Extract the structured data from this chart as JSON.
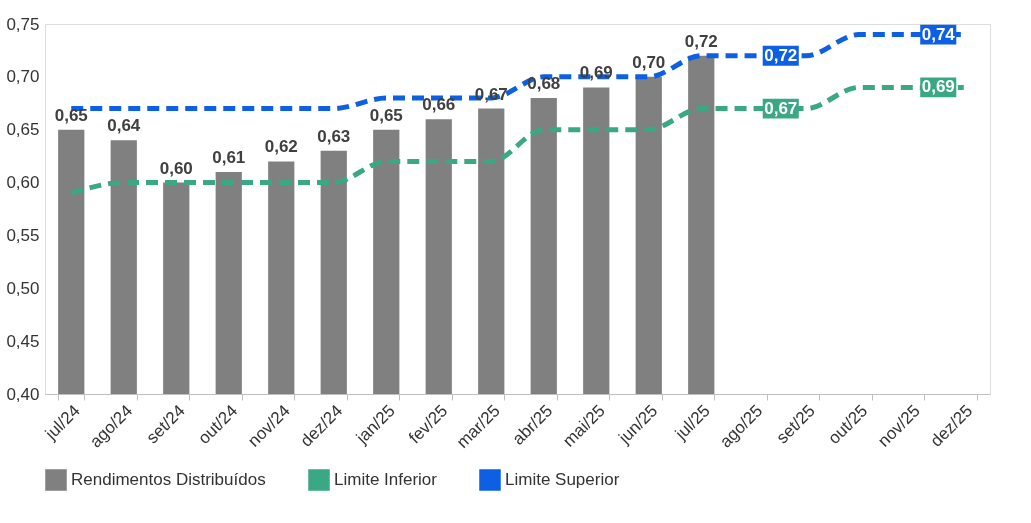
{
  "chart_data": {
    "type": "bar",
    "categories": [
      "jul/24",
      "ago/24",
      "set/24",
      "out/24",
      "nov/24",
      "dez/24",
      "jan/25",
      "fev/25",
      "mar/25",
      "abr/25",
      "mai/25",
      "jun/25",
      "jul/25",
      "ago/25",
      "set/25",
      "out/25",
      "nov/25",
      "dez/25"
    ],
    "series": [
      {
        "name": "Rendimentos Distribuídos",
        "color": "#808080",
        "values": [
          0.65,
          0.64,
          0.6,
          0.61,
          0.62,
          0.63,
          0.65,
          0.66,
          0.67,
          0.68,
          0.69,
          0.7,
          0.72,
          null,
          null,
          null,
          null,
          null
        ],
        "value_labels": [
          "0,65",
          "0,64",
          "0,60",
          "0,61",
          "0,62",
          "0,63",
          "0,65",
          "0,66",
          "0,67",
          "0,68",
          "0,69",
          "0,70",
          "0,72",
          null,
          null,
          null,
          null,
          null
        ]
      },
      {
        "name": "Limite Inferior",
        "type": "line",
        "color": "#3aa884",
        "values": [
          0.59,
          0.6,
          0.6,
          0.6,
          0.6,
          0.6,
          0.62,
          0.62,
          0.62,
          0.65,
          0.65,
          0.65,
          0.67,
          0.67,
          0.67,
          0.69,
          0.69,
          0.69
        ],
        "value_labels": [
          null,
          null,
          null,
          null,
          null,
          null,
          null,
          null,
          null,
          null,
          null,
          null,
          null,
          "0,67",
          null,
          null,
          "0,69",
          null
        ]
      },
      {
        "name": "Limite Superior",
        "type": "line",
        "color": "#0d5fe3",
        "values": [
          0.67,
          0.67,
          0.67,
          0.67,
          0.67,
          0.67,
          0.68,
          0.68,
          0.68,
          0.7,
          0.7,
          0.7,
          0.72,
          0.72,
          0.72,
          0.74,
          0.74,
          0.74
        ],
        "value_labels": [
          null,
          null,
          null,
          null,
          null,
          null,
          null,
          null,
          null,
          null,
          null,
          null,
          null,
          "0,72",
          null,
          null,
          "0,74",
          null
        ]
      }
    ],
    "ylim": [
      0.4,
      0.75
    ],
    "yticks": [
      {
        "value": 0.4,
        "label": "0,40"
      },
      {
        "value": 0.45,
        "label": "0,45"
      },
      {
        "value": 0.5,
        "label": "0,50"
      },
      {
        "value": 0.55,
        "label": "0,55"
      },
      {
        "value": 0.6,
        "label": "0,60"
      },
      {
        "value": 0.65,
        "label": "0,65"
      },
      {
        "value": 0.7,
        "label": "0,70"
      },
      {
        "value": 0.75,
        "label": "0,75"
      }
    ],
    "legend": "bottom",
    "grid": false,
    "line_style": "dashed",
    "marker": "none"
  }
}
